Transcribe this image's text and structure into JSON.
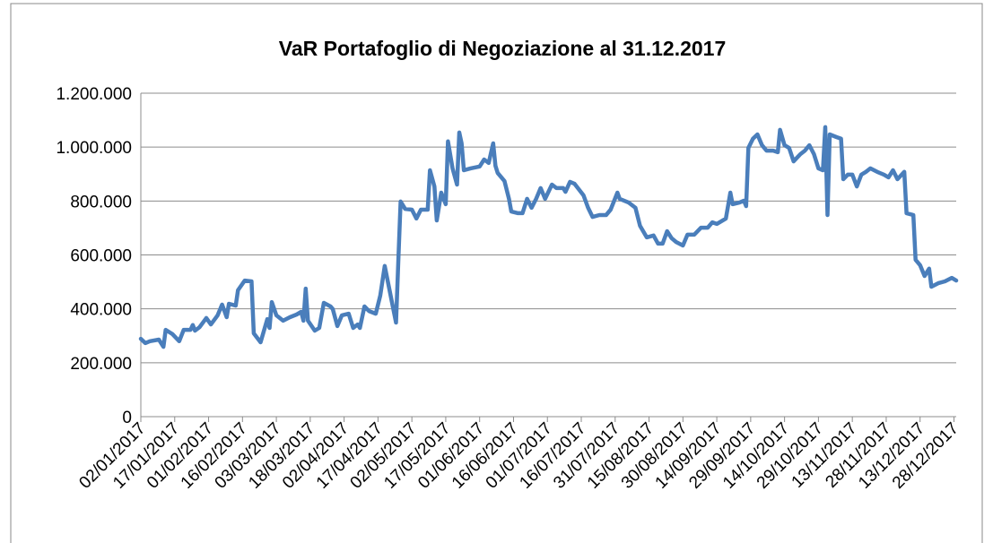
{
  "chart_data": {
    "type": "line",
    "title": "VaR Portafoglio di Negoziazione al 31.12.2017",
    "x": [
      "02/01/2017",
      "04/01/2017",
      "06/01/2017",
      "10/01/2017",
      "12/01/2017",
      "13/01/2017",
      "16/01/2017",
      "19/01/2017",
      "21/01/2017",
      "24/01/2017",
      "25/01/2017",
      "26/01/2017",
      "28/01/2017",
      "31/01/2017",
      "02/02/2017",
      "05/02/2017",
      "07/02/2017",
      "09/02/2017",
      "10/02/2017",
      "13/02/2017",
      "14/02/2017",
      "17/02/2017",
      "20/02/2017",
      "21/02/2017",
      "24/02/2017",
      "27/02/2017",
      "28/02/2017",
      "01/03/2017",
      "03/03/2017",
      "06/03/2017",
      "09/03/2017",
      "12/03/2017",
      "14/03/2017",
      "15/03/2017",
      "16/03/2017",
      "17/03/2017",
      "20/03/2017",
      "22/03/2017",
      "24/03/2017",
      "27/03/2017",
      "28/03/2017",
      "30/03/2017",
      "01/04/2017",
      "04/04/2017",
      "06/04/2017",
      "08/04/2017",
      "09/04/2017",
      "11/04/2017",
      "13/04/2017",
      "16/04/2017",
      "18/04/2017",
      "20/04/2017",
      "23/04/2017",
      "25/04/2017",
      "26/04/2017",
      "27/04/2017",
      "29/04/2017",
      "02/05/2017",
      "04/05/2017",
      "06/05/2017",
      "09/05/2017",
      "10/05/2017",
      "12/05/2017",
      "13/05/2017",
      "15/05/2017",
      "17/05/2017",
      "18/05/2017",
      "20/05/2017",
      "22/05/2017",
      "23/05/2017",
      "24/05/2017",
      "25/05/2017",
      "28/05/2017",
      "01/06/2017",
      "03/06/2017",
      "05/06/2017",
      "07/06/2017",
      "08/06/2017",
      "09/06/2017",
      "12/06/2017",
      "14/06/2017",
      "15/06/2017",
      "18/06/2017",
      "20/06/2017",
      "22/06/2017",
      "24/06/2017",
      "26/06/2017",
      "28/06/2017",
      "30/06/2017",
      "03/07/2017",
      "05/07/2017",
      "08/07/2017",
      "09/07/2017",
      "11/07/2017",
      "13/07/2017",
      "17/07/2017",
      "19/07/2017",
      "21/07/2017",
      "24/07/2017",
      "27/07/2017",
      "29/07/2017",
      "01/08/2017",
      "02/08/2017",
      "06/08/2017",
      "09/08/2017",
      "11/08/2017",
      "14/08/2017",
      "17/08/2017",
      "19/08/2017",
      "21/08/2017",
      "23/08/2017",
      "25/08/2017",
      "27/08/2017",
      "30/08/2017",
      "01/09/2017",
      "04/09/2017",
      "07/09/2017",
      "10/09/2017",
      "12/09/2017",
      "14/09/2017",
      "18/09/2017",
      "20/09/2017",
      "21/09/2017",
      "24/09/2017",
      "26/09/2017",
      "27/09/2017",
      "28/09/2017",
      "30/09/2017",
      "02/10/2017",
      "04/10/2017",
      "06/10/2017",
      "09/10/2017",
      "11/10/2017",
      "12/10/2017",
      "14/10/2017",
      "16/10/2017",
      "18/10/2017",
      "21/10/2017",
      "23/10/2017",
      "25/10/2017",
      "27/10/2017",
      "29/10/2017",
      "31/10/2017",
      "01/11/2017",
      "02/11/2017",
      "03/11/2017",
      "06/11/2017",
      "08/11/2017",
      "09/11/2017",
      "11/11/2017",
      "13/11/2017",
      "15/11/2017",
      "17/11/2017",
      "19/11/2017",
      "21/11/2017",
      "24/11/2017",
      "27/11/2017",
      "29/11/2017",
      "01/12/2017",
      "03/12/2017",
      "06/12/2017",
      "07/12/2017",
      "10/12/2017",
      "11/12/2017",
      "13/12/2017",
      "15/12/2017",
      "17/12/2017",
      "18/12/2017",
      "21/12/2017",
      "24/12/2017",
      "27/12/2017",
      "29/12/2017"
    ],
    "series": [
      {
        "name": "VaR",
        "color": "#4a7ebb",
        "values": [
          289000,
          273000,
          280000,
          286000,
          259000,
          322000,
          306000,
          280000,
          322000,
          322000,
          340000,
          319000,
          332000,
          366000,
          342000,
          376000,
          416000,
          369000,
          419000,
          412000,
          469000,
          505000,
          502000,
          309000,
          276000,
          362000,
          329000,
          425000,
          376000,
          356000,
          369000,
          379000,
          389000,
          356000,
          475000,
          356000,
          319000,
          329000,
          422000,
          409000,
          399000,
          336000,
          376000,
          382000,
          329000,
          342000,
          329000,
          409000,
          392000,
          382000,
          449000,
          559000,
          432000,
          349000,
          582000,
          798000,
          771000,
          768000,
          735000,
          768000,
          768000,
          914000,
          854000,
          728000,
          831000,
          788000,
          1021000,
          921000,
          861000,
          1054000,
          1014000,
          914000,
          921000,
          928000,
          954000,
          941000,
          1014000,
          931000,
          904000,
          874000,
          808000,
          761000,
          755000,
          755000,
          808000,
          775000,
          808000,
          848000,
          808000,
          861000,
          848000,
          848000,
          834000,
          871000,
          864000,
          821000,
          775000,
          741000,
          748000,
          748000,
          768000,
          831000,
          808000,
          794000,
          775000,
          708000,
          665000,
          672000,
          642000,
          642000,
          688000,
          662000,
          648000,
          635000,
          675000,
          675000,
          701000,
          701000,
          721000,
          715000,
          735000,
          831000,
          788000,
          794000,
          801000,
          781000,
          997000,
          1031000,
          1047000,
          1007000,
          987000,
          987000,
          981000,
          1064000,
          1007000,
          997000,
          947000,
          974000,
          987000,
          1007000,
          974000,
          921000,
          914000,
          1074000,
          748000,
          1047000,
          1037000,
          1031000,
          881000,
          898000,
          898000,
          854000,
          898000,
          908000,
          921000,
          908000,
          898000,
          888000,
          914000,
          881000,
          908000,
          755000,
          748000,
          582000,
          562000,
          522000,
          549000,
          482000,
          495000,
          502000,
          515000,
          505000
        ]
      }
    ],
    "xlim": [
      "02/01/2017",
      "29/12/2017"
    ],
    "xticks": [
      "02/01/2017",
      "17/01/2017",
      "01/02/2017",
      "16/02/2017",
      "03/03/2017",
      "18/03/2017",
      "02/04/2017",
      "17/04/2017",
      "02/05/2017",
      "17/05/2017",
      "01/06/2017",
      "16/06/2017",
      "01/07/2017",
      "16/07/2017",
      "31/07/2017",
      "15/08/2017",
      "30/08/2017",
      "14/09/2017",
      "29/09/2017",
      "14/10/2017",
      "29/10/2017",
      "13/11/2017",
      "28/11/2017",
      "13/12/2017",
      "28/12/2017"
    ],
    "ylim": [
      0,
      1200000
    ],
    "yticks": [
      0,
      {
        "value": 200000,
        "label": "200.000"
      },
      {
        "value": 400000,
        "label": "400.000"
      },
      {
        "value": 600000,
        "label": "600.000"
      },
      {
        "value": 800000,
        "label": "800.000"
      },
      {
        "value": 1000000,
        "label": "1.000.000"
      },
      {
        "value": 1200000,
        "label": "1.200.000"
      }
    ],
    "grid": true
  }
}
